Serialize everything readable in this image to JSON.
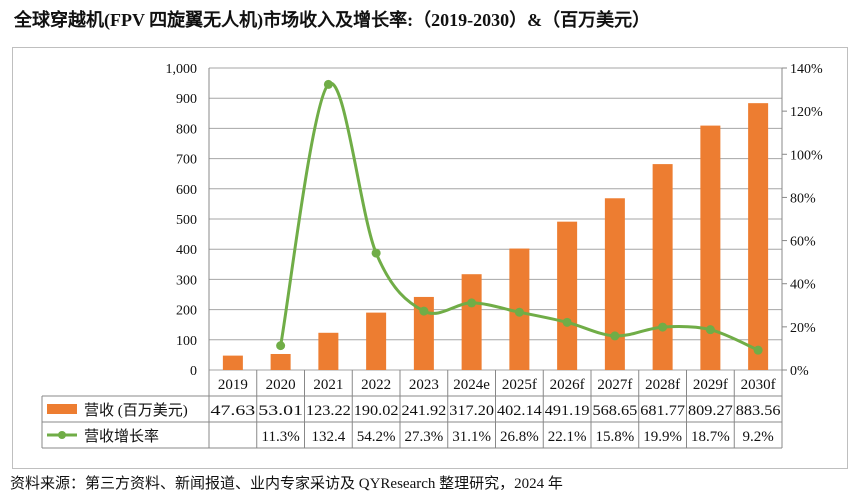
{
  "title": "全球穿越机(FPV 四旋翼无人机)市场收入及增长率:（2019-2030）&（百万美元）",
  "source": "资料来源：第三方资料、新闻报道、业内专家采访及 QYResearch 整理研究，2024 年",
  "chart_data": {
    "type": "bar+line",
    "categories": [
      "2019",
      "2020",
      "2021",
      "2022",
      "2023",
      "2024e",
      "2025f",
      "2026f",
      "2027f",
      "2028f",
      "2029f",
      "2030f"
    ],
    "series": [
      {
        "name": "营收 (百万美元)",
        "type": "bar",
        "axis": "left",
        "color": "#ED7D31",
        "values": [
          47.63,
          53.01,
          123.22,
          190.02,
          241.92,
          317.2,
          402.14,
          491.19,
          568.65,
          681.77,
          809.27,
          883.56
        ],
        "labels": [
          "47.63",
          "53.01",
          "123.22",
          "190.02",
          "241.92",
          "317.20",
          "402.14",
          "491.19",
          "568.65",
          "681.77",
          "809.27",
          "883.56"
        ]
      },
      {
        "name": "营收增长率",
        "type": "line",
        "axis": "right",
        "color": "#70AD47",
        "values": [
          null,
          11.3,
          132.4,
          54.2,
          27.3,
          31.1,
          26.8,
          22.1,
          15.8,
          19.9,
          18.7,
          9.2
        ],
        "labels": [
          "",
          "11.3%",
          "132.4",
          "54.2%",
          "27.3%",
          "31.1%",
          "26.8%",
          "22.1%",
          "15.8%",
          "19.9%",
          "18.7%",
          "9.2%"
        ]
      }
    ],
    "y_left": {
      "range": [
        0,
        1000
      ],
      "ticks": [
        "0",
        "100",
        "200",
        "300",
        "400",
        "500",
        "600",
        "700",
        "800",
        "900",
        "1,000"
      ]
    },
    "y_right": {
      "range": [
        0,
        140
      ],
      "ticks": [
        "0%",
        "20%",
        "40%",
        "60%",
        "80%",
        "100%",
        "120%",
        "140%"
      ]
    },
    "grid": true,
    "legend": "data table below chart"
  }
}
